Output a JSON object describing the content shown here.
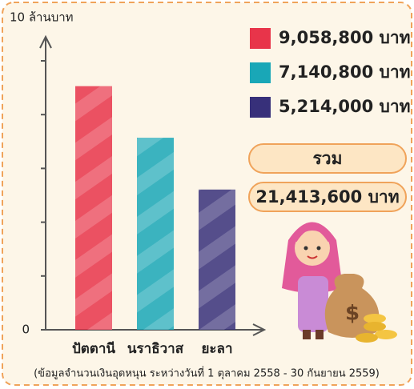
{
  "chart_data": {
    "type": "bar",
    "categories": [
      "ปัตตานี",
      "นราธิวาส",
      "ยะลา"
    ],
    "values": [
      9058800,
      7140800,
      5214000
    ],
    "value_labels": [
      "9,058,800 บาท",
      "7,140,800 บาท",
      "5,214,000 บาท"
    ],
    "colors": [
      "#e8344a",
      "#19a7b7",
      "#37307a"
    ],
    "ylim": [
      0,
      10000000
    ],
    "yticks": [
      0,
      {
        "value": 10000000,
        "label": "10 ล้านบาท"
      }
    ],
    "yminorticks": [
      2000000,
      4000000,
      6000000,
      8000000
    ],
    "total_title": "รวม",
    "total": 21413600,
    "total_label": "21,413,600 บาท",
    "footnote": "(ข้อมูลจำนวนเงินอุดหนุน ระหว่างวันที่ 1 ตุลาคม 2558 - 30 กันยายน 2559)"
  }
}
